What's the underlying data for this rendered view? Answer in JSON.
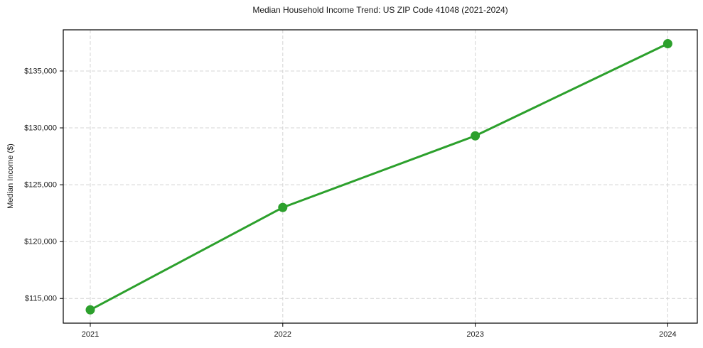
{
  "chart_data": {
    "type": "line",
    "title": "Median Household Income Trend: US ZIP Code 41048 (2021-2024)",
    "xlabel": "",
    "ylabel": "Median Income ($)",
    "categories": [
      "2021",
      "2022",
      "2023",
      "2024"
    ],
    "values": [
      114000,
      123000,
      129300,
      137400
    ],
    "yticks": {
      "values": [
        115000,
        120000,
        125000,
        130000,
        135000
      ],
      "labels": [
        "$115,000",
        "$120,000",
        "$125,000",
        "$130,000",
        "$135,000"
      ]
    },
    "ylim": [
      112830,
      138620
    ],
    "grid": true,
    "grid_style": "dashed",
    "legend": "none",
    "marker": "circle",
    "colors": {
      "line": "#2ca02c",
      "grid": "#d4d4d4",
      "axes": "#000000",
      "text": "#1a1a1a",
      "background": "#ffffff"
    }
  }
}
